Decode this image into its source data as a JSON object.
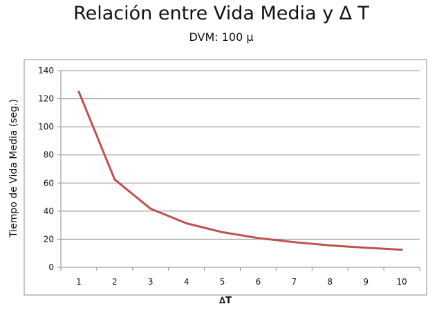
{
  "chart_data": {
    "type": "line",
    "title": "Relación entre Vida Media y ∆ T",
    "subtitle": "DVM: 100 µ",
    "xlabel": "∆T",
    "ylabel": "Tiempo de Vida Media (seg.)",
    "x": [
      1,
      2,
      3,
      4,
      5,
      6,
      7,
      8,
      9,
      10
    ],
    "y_ticks": [
      0,
      20,
      40,
      60,
      80,
      100,
      120,
      140
    ],
    "ylim": [
      0,
      140
    ],
    "grid": true,
    "legend": "none",
    "series": [
      {
        "values": [
          125,
          62.5,
          41.7,
          31.3,
          25,
          20.8,
          17.9,
          15.6,
          13.9,
          12.5
        ],
        "color": "#c0504d"
      }
    ]
  }
}
